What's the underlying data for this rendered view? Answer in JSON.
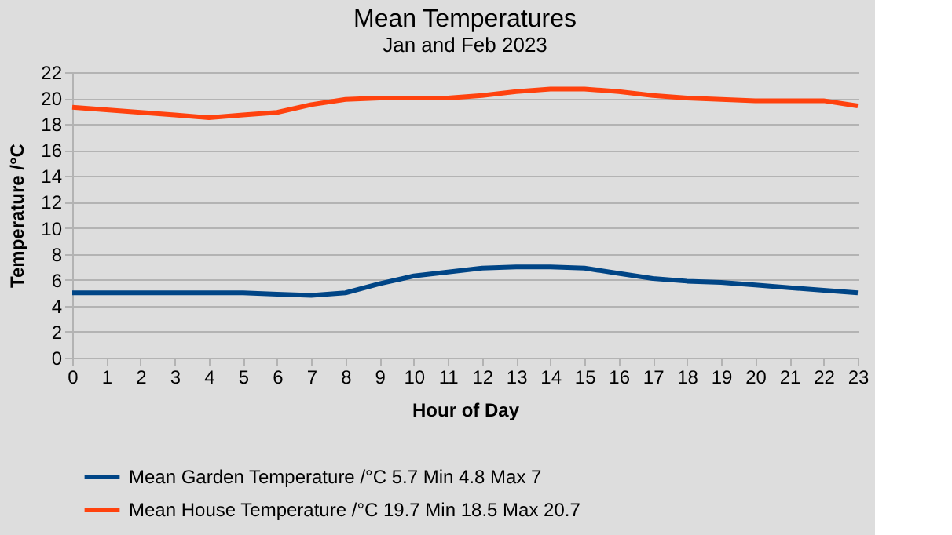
{
  "chart_data": {
    "type": "line",
    "title": "Mean Temperatures",
    "subtitle": "Jan and Feb 2023",
    "xlabel": "Hour of Day",
    "ylabel": "Temperature /°C",
    "x": [
      0,
      1,
      2,
      3,
      4,
      5,
      6,
      7,
      8,
      9,
      10,
      11,
      12,
      13,
      14,
      15,
      16,
      17,
      18,
      19,
      20,
      21,
      22,
      23
    ],
    "series": [
      {
        "name": "Mean Garden Temperature /°C 5.7 Min 4.8 Max 7",
        "color": "#004586",
        "values": [
          5.0,
          5.0,
          5.0,
          5.0,
          5.0,
          5.0,
          4.9,
          4.8,
          5.0,
          5.7,
          6.3,
          6.6,
          6.9,
          7.0,
          7.0,
          6.9,
          6.5,
          6.1,
          5.9,
          5.8,
          5.6,
          5.4,
          5.2,
          5.0
        ]
      },
      {
        "name": "Mean House Temperature /°C 19.7 Min 18.5 Max 20.7",
        "color": "#ff420e",
        "values": [
          19.3,
          19.1,
          18.9,
          18.7,
          18.5,
          18.7,
          18.9,
          19.5,
          19.9,
          20.0,
          20.0,
          20.0,
          20.2,
          20.5,
          20.7,
          20.7,
          20.5,
          20.2,
          20.0,
          19.9,
          19.8,
          19.8,
          19.8,
          19.4
        ]
      }
    ],
    "xlim": [
      0,
      23
    ],
    "xticks": [
      0,
      1,
      2,
      3,
      4,
      5,
      6,
      7,
      8,
      9,
      10,
      11,
      12,
      13,
      14,
      15,
      16,
      17,
      18,
      19,
      20,
      21,
      22,
      23
    ],
    "ylim": [
      0,
      22
    ],
    "yticks": [
      0,
      2,
      4,
      6,
      8,
      10,
      12,
      14,
      16,
      18,
      20,
      22
    ],
    "grid": "y",
    "legend": "bottom",
    "marker": "none",
    "line_style": "solid"
  }
}
